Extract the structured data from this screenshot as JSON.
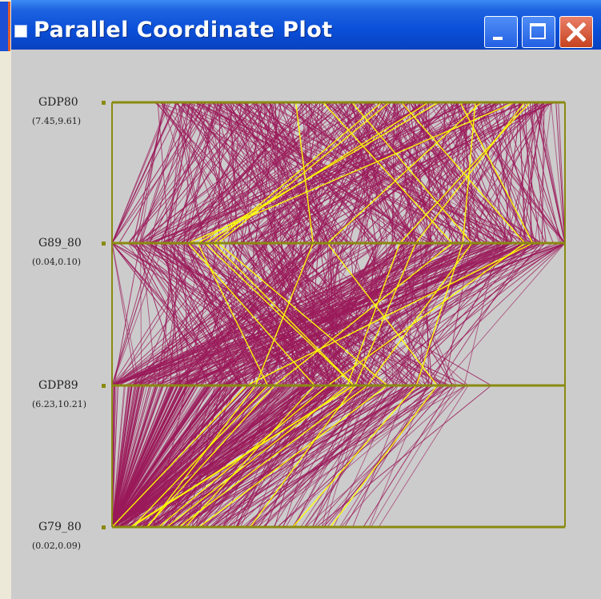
{
  "window": {
    "title": "Parallel Coordinate Plot"
  },
  "colors": {
    "title_bar": "#0a4fd8",
    "background": "#cccccc",
    "axis": "#8a8a10",
    "lines": "#9b1a5a",
    "highlight": "#ffff00"
  },
  "chart_data": {
    "type": "parallel-coordinates",
    "axes": [
      {
        "name": "GDP80",
        "range_label": "(7.45,9.61)",
        "min": 7.45,
        "max": 9.61
      },
      {
        "name": "G89_80",
        "range_label": "(0.04,0.10)",
        "min": 0.04,
        "max": 0.1
      },
      {
        "name": "GDP89",
        "range_label": "(6.23,10.21)",
        "min": 6.23,
        "max": 10.21
      },
      {
        "name": "G79_80",
        "range_label": "(0.02,0.09)",
        "min": 0.02,
        "max": 0.09
      }
    ]
  }
}
